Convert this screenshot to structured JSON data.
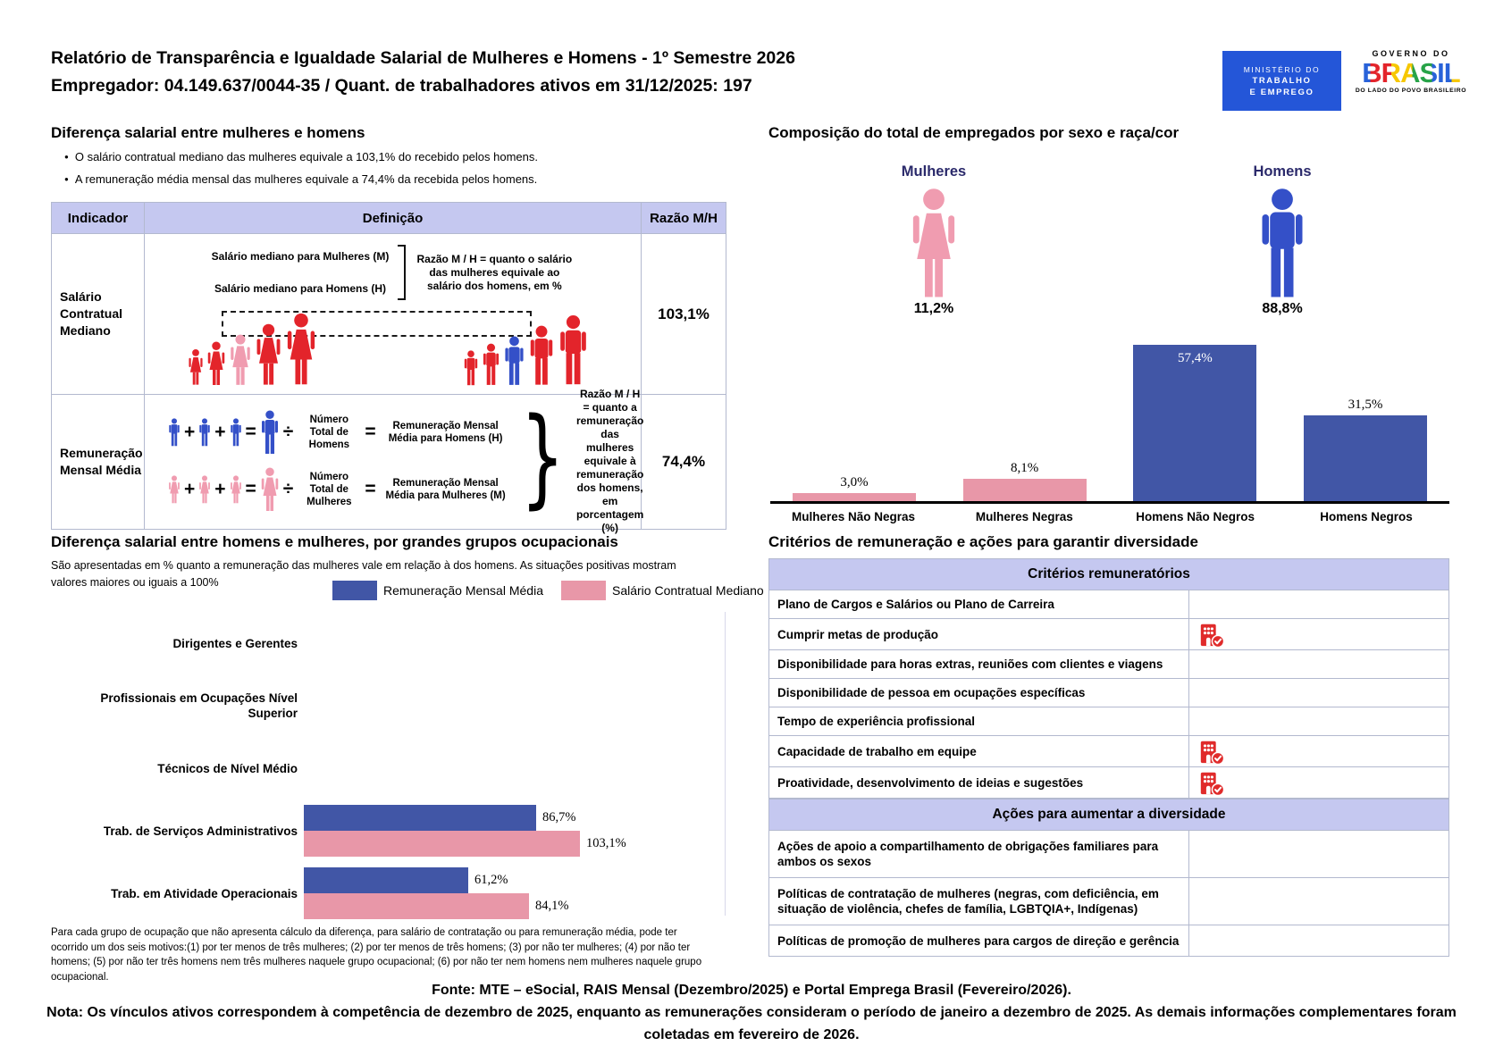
{
  "header": {
    "title_line1": "Relatório de Transparência e Igualdade Salarial de Mulheres e Homens - 1º Semestre 2026",
    "title_line2": "Empregador: 04.149.637/0044-35 / Quant. de trabalhadores ativos em 31/12/2025: 197",
    "ministry_logo": {
      "line1": "MINISTÉRIO DO",
      "line2": "TRABALHO",
      "line3": "E EMPREGO"
    },
    "brasil_logo": {
      "line1": "GOVERNO DO",
      "word": "BRASIL",
      "line3": "DO LADO DO POVO BRASILEIRO"
    }
  },
  "salary_gap": {
    "title": "Diferença salarial entre mulheres e homens",
    "bullets": [
      "O salário contratual mediano das mulheres equivale a 103,1% do recebido pelos homens.",
      "A remuneração média mensal das mulheres equivale a 74,4% da recebida pelos homens."
    ],
    "table": {
      "headers": [
        "Indicador",
        "Definição",
        "Razão M/H"
      ],
      "rows": [
        {
          "indicator": "Salário Contratual Mediano",
          "def_line1": "Salário mediano para Mulheres (M)",
          "def_line2": "Salário mediano para Homens (H)",
          "explanation": "Razão M / H = quanto o salário das mulheres equivale ao salário dos homens, em %",
          "ratio": "103,1%"
        },
        {
          "indicator": "Remuneração Mensal Média",
          "men_count_label": "Número Total de Homens",
          "men_result_label": "Remuneração Mensal Média para Homens (H)",
          "women_count_label": "Número Total de Mulheres",
          "women_result_label": "Remuneração Mensal Média para Mulheres (M)",
          "explanation": "Razão M / H = quanto a remuneração das mulheres equivale à remuneração dos homens, em porcentagem (%)",
          "ratio": "74,4%"
        }
      ]
    }
  },
  "composition": {
    "title": "Composição do total de empregados por sexo e raça/cor",
    "groups": [
      {
        "label": "Mulheres",
        "value": "11,2%"
      },
      {
        "label": "Homens",
        "value": "88,8%"
      }
    ]
  },
  "occupational": {
    "title": "Diferença salarial entre homens e mulheres, por grandes grupos ocupacionais",
    "subtitle": "São apresentadas em % quanto a remuneração das mulheres vale em relação à dos homens. As situações positivas mostram valores maiores ou iguais a 100%",
    "legend": [
      "Remuneração Mensal Média",
      "Salário Contratual Mediano"
    ],
    "footnote": "Para cada grupo de ocupação que não apresenta cálculo da diferença, para salário de contratação ou para remuneração média, pode ter ocorrido um dos seis motivos:(1) por ter menos de três mulheres; (2) por ter menos de três homens; (3) por não ter mulheres; (4) por não ter homens; (5) por não ter três homens nem três mulheres naquele grupo ocupacional; (6) por não ter nem homens nem mulheres naquele grupo ocupacional."
  },
  "criteria": {
    "title": "Critérios de remuneração e ações para garantir diversidade",
    "sections": [
      {
        "header": "Critérios remuneratórios",
        "rows": [
          {
            "label": "Plano de Cargos e Salários ou Plano de Carreira",
            "checked": false
          },
          {
            "label": "Cumprir metas de produção",
            "checked": true
          },
          {
            "label": "Disponibilidade para horas extras, reuniões com clientes e viagens",
            "checked": false
          },
          {
            "label": "Disponibilidade de pessoa em ocupações específicas",
            "checked": false
          },
          {
            "label": "Tempo de experiência profissional",
            "checked": false
          },
          {
            "label": "Capacidade de trabalho em equipe",
            "checked": true
          },
          {
            "label": "Proatividade, desenvolvimento de ideias e sugestões",
            "checked": true
          }
        ]
      },
      {
        "header": "Ações para aumentar a diversidade",
        "rows": [
          {
            "label": "Ações de apoio a compartilhamento de obrigações familiares para ambos os sexos",
            "checked": false
          },
          {
            "label": "Políticas de contratação de mulheres (negras, com deficiência, em situação de violência, chefes de família, LGBTQIA+, Indígenas)",
            "checked": false
          },
          {
            "label": "Políticas de promoção de mulheres para cargos de direção e gerência",
            "checked": false
          }
        ]
      }
    ]
  },
  "footer": {
    "fonte": "Fonte: MTE – eSocial, RAIS Mensal (Dezembro/2025) e Portal Emprega Brasil (Fevereiro/2026).",
    "nota": "Nota: Os vínculos ativos correspondem à competência de dezembro de 2025, enquanto as remunerações consideram o período de janeiro a dezembro de 2025. As demais informações complementares foram coletadas em fevereiro de 2026."
  },
  "colors": {
    "accent_blue": "#4156A6",
    "accent_pink": "#E897A8",
    "lavender": "#C5C8F0",
    "navy": "#2B2A6B",
    "fig_red": "#E3242B",
    "fig_pink": "#F09CB0",
    "fig_blue": "#3450C8",
    "icon_red": "#E02B2B",
    "gov_blue": "#2456D8",
    "border": "#B3B9CF"
  },
  "chart_data": [
    {
      "id": "composition",
      "type": "bar",
      "title": "Composição do total de empregados por sexo e raça/cor",
      "categories": [
        "Mulheres Não Negras",
        "Mulheres Negras",
        "Homens Não Negros",
        "Homens Negros"
      ],
      "values": [
        3.0,
        8.1,
        57.4,
        31.5
      ],
      "value_labels": [
        "3,0%",
        "8,1%",
        "57,4%",
        "31,5%"
      ],
      "bar_colors": [
        "#E897A8",
        "#E897A8",
        "#4156A6",
        "#4156A6"
      ],
      "label_inside": [
        false,
        false,
        true,
        false
      ],
      "ylim": [
        0,
        62
      ],
      "grid": false,
      "summary": {
        "Mulheres": "11,2%",
        "Homens": "88,8%"
      }
    },
    {
      "id": "occupational",
      "type": "bar-horizontal",
      "title": "Diferença salarial entre homens e mulheres, por grandes grupos ocupacionais",
      "categories": [
        "Dirigentes e Gerentes",
        "Profissionais em Ocupações Nível Superior",
        "Técnicos de Nível Médio",
        "Trab. de Serviços Administrativos",
        "Trab. em Atividade Operacionais"
      ],
      "series": [
        {
          "name": "Remuneração Mensal Média",
          "color": "#4156A6",
          "values": [
            null,
            null,
            null,
            86.7,
            61.2
          ],
          "labels": [
            null,
            null,
            null,
            "86,7%",
            "61,2%"
          ]
        },
        {
          "name": "Salário Contratual Mediano",
          "color": "#E897A8",
          "values": [
            null,
            null,
            null,
            103.1,
            84.1
          ],
          "labels": [
            null,
            null,
            null,
            "103,1%",
            "84,1%"
          ]
        }
      ],
      "xlim": [
        0,
        120
      ],
      "grid": false,
      "legend_position": "top"
    }
  ]
}
